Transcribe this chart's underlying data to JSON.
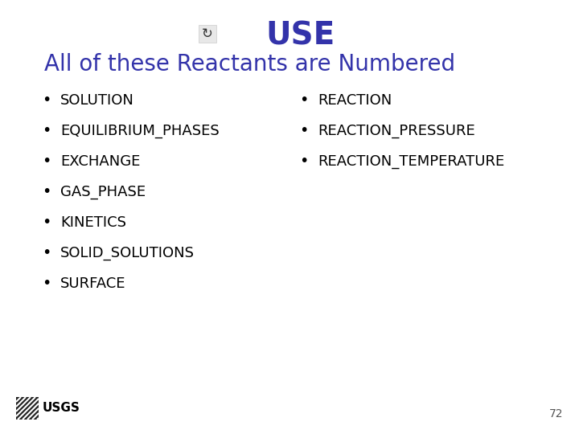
{
  "title": "USE",
  "subtitle": "All of these Reactants are Numbered",
  "title_color": "#3333AA",
  "subtitle_color": "#3333AA",
  "title_fontsize": 28,
  "subtitle_fontsize": 20,
  "left_items": [
    "SOLUTION",
    "EQUILIBRIUM_PHASES",
    "EXCHANGE",
    "GAS_PHASE",
    "KINETICS",
    "SOLID_SOLUTIONS",
    "SURFACE"
  ],
  "right_items": [
    "REACTION",
    "REACTION_PRESSURE",
    "REACTION_TEMPERATURE"
  ],
  "item_fontsize": 13,
  "item_color": "#000000",
  "bullet": "•",
  "page_number": "72",
  "background_color": "#ffffff",
  "icon_color": "#888888",
  "icon_bg": "#e8e8e8"
}
